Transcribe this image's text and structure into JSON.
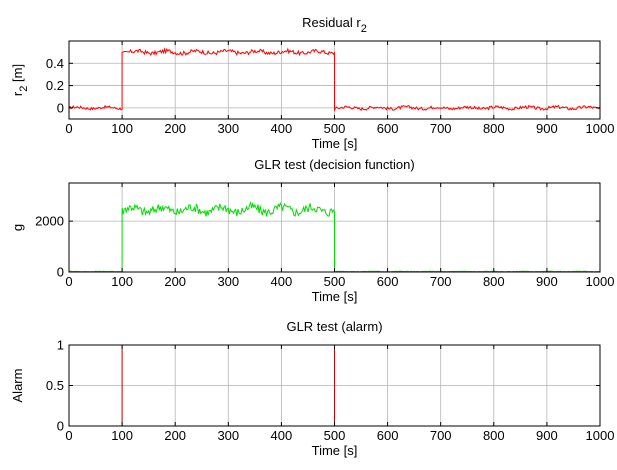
{
  "chart_data": [
    {
      "type": "line",
      "title": "Residual r",
      "title_sub": "2",
      "xlabel": "Time [s]",
      "ylabel": "r",
      "ylabel_sub": "2",
      "ylabel_unit": " [m]",
      "xlim": [
        0,
        1000
      ],
      "ylim": [
        -0.1,
        0.6
      ],
      "xticks": [
        0,
        100,
        200,
        300,
        400,
        500,
        600,
        700,
        800,
        900,
        1000
      ],
      "yticks": [
        0,
        0.2,
        0.4
      ],
      "ytick_labels": [
        "0",
        "0.2",
        "0.4"
      ],
      "grid": true,
      "series": [
        {
          "color": "#ff0000",
          "segments": [
            {
              "x": [
                0,
                100
              ],
              "base": 0.0,
              "noise": 0.012
            },
            {
              "x": [
                100,
                500
              ],
              "base": 0.5,
              "noise": 0.018
            },
            {
              "x": [
                500,
                1000
              ],
              "base": 0.0,
              "noise": 0.014
            }
          ]
        }
      ]
    },
    {
      "type": "line",
      "title": "GLR test (decision function)",
      "xlabel": "Time [s]",
      "ylabel": "g",
      "xlim": [
        0,
        1000
      ],
      "ylim": [
        0,
        3500
      ],
      "xticks": [
        0,
        100,
        200,
        300,
        400,
        500,
        600,
        700,
        800,
        900,
        1000
      ],
      "yticks": [
        0,
        2000
      ],
      "ytick_labels": [
        "0",
        "2000"
      ],
      "grid": true,
      "series": [
        {
          "color": "#00dd00",
          "segments": [
            {
              "x": [
                0,
                100
              ],
              "base": 20,
              "noise": 8
            },
            {
              "x": [
                100,
                500
              ],
              "base": 2450,
              "noise": 180
            },
            {
              "x": [
                500,
                1000
              ],
              "base": 20,
              "noise": 8
            }
          ]
        }
      ]
    },
    {
      "type": "line",
      "title": "GLR test (alarm)",
      "xlabel": "Time [s]",
      "ylabel": "Alarm",
      "xlim": [
        0,
        1000
      ],
      "ylim": [
        0,
        1
      ],
      "xticks": [
        0,
        100,
        200,
        300,
        400,
        500,
        600,
        700,
        800,
        900,
        1000
      ],
      "yticks": [
        0,
        0.5,
        1
      ],
      "ytick_labels": [
        "0",
        "0.5",
        "1"
      ],
      "grid": true,
      "series": [
        {
          "color": "#cc0000",
          "x": [
            0,
            100,
            100,
            500,
            500,
            1000
          ],
          "y": [
            0,
            0,
            1,
            1,
            0,
            0
          ]
        }
      ]
    }
  ]
}
